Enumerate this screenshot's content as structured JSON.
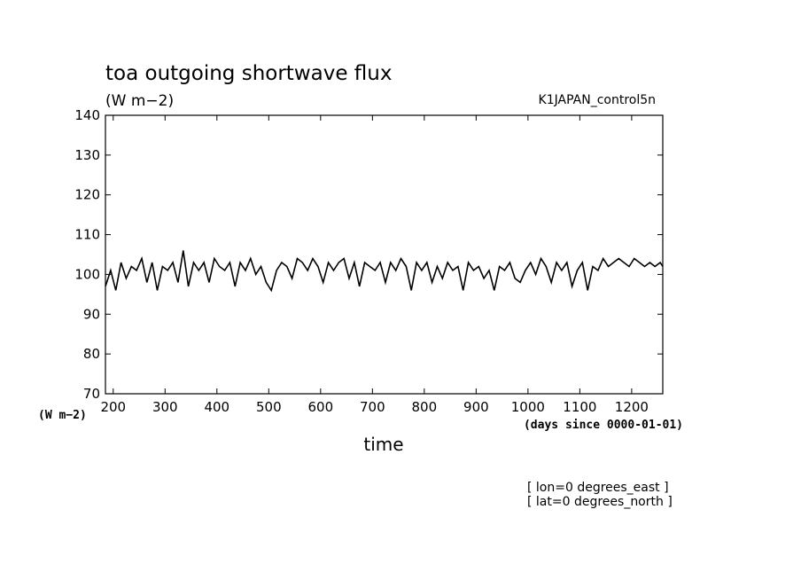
{
  "chart_data": {
    "type": "line",
    "title": "toa outgoing shortwave flux",
    "subtitle": "(W m−2)",
    "run_label": "K1JAPAN_control5n",
    "ylabel": "(W m−2)",
    "xlabel": "time",
    "x_units_label": "(days since 0000-01-01)",
    "xlim": [
      185,
      1260
    ],
    "ylim": [
      70,
      140
    ],
    "x_ticks": [
      200,
      300,
      400,
      500,
      600,
      700,
      800,
      900,
      1000,
      1100,
      1200
    ],
    "y_ticks": [
      70,
      80,
      90,
      100,
      110,
      120,
      130,
      140
    ],
    "grid": false,
    "footnotes": [
      "[ lon=0 degrees_east ]",
      "[ lat=0 degrees_north ]"
    ],
    "series": [
      {
        "x": [
          185,
          195,
          205,
          215,
          225,
          235,
          245,
          255,
          265,
          275,
          285,
          295,
          305,
          315,
          325,
          335,
          345,
          355,
          365,
          375,
          385,
          395,
          405,
          415,
          425,
          435,
          445,
          455,
          465,
          475,
          485,
          495,
          505,
          515,
          525,
          535,
          545,
          555,
          565,
          575,
          585,
          595,
          605,
          615,
          625,
          635,
          645,
          655,
          665,
          675,
          685,
          695,
          705,
          715,
          725,
          735,
          745,
          755,
          765,
          775,
          785,
          795,
          805,
          815,
          825,
          835,
          845,
          855,
          865,
          875,
          885,
          895,
          905,
          915,
          925,
          935,
          945,
          955,
          965,
          975,
          985,
          995,
          1005,
          1015,
          1025,
          1035,
          1045,
          1055,
          1065,
          1075,
          1085,
          1095,
          1105,
          1115,
          1125,
          1135,
          1145,
          1155,
          1165,
          1175,
          1185,
          1195,
          1205,
          1215,
          1225,
          1235,
          1245,
          1255,
          1260
        ],
        "y": [
          97,
          101,
          96,
          103,
          99,
          102,
          101,
          104,
          98,
          103,
          96,
          102,
          101,
          103,
          98,
          106,
          97,
          103,
          101,
          103,
          98,
          104,
          102,
          101,
          103,
          97,
          103,
          101,
          104,
          100,
          102,
          98,
          96,
          101,
          103,
          102,
          99,
          104,
          103,
          101,
          104,
          102,
          98,
          103,
          101,
          103,
          104,
          99,
          103,
          97,
          103,
          102,
          101,
          103,
          98,
          103,
          101,
          104,
          102,
          96,
          103,
          101,
          103,
          98,
          102,
          99,
          103,
          101,
          102,
          96,
          103,
          101,
          102,
          99,
          101,
          96,
          102,
          101,
          103,
          99,
          98,
          101,
          103,
          100,
          104,
          102,
          98,
          103,
          101,
          103,
          97,
          101,
          103,
          96,
          102,
          101,
          104,
          102,
          103,
          104,
          103,
          102,
          104,
          103,
          102,
          103,
          102,
          103,
          102
        ]
      }
    ]
  }
}
